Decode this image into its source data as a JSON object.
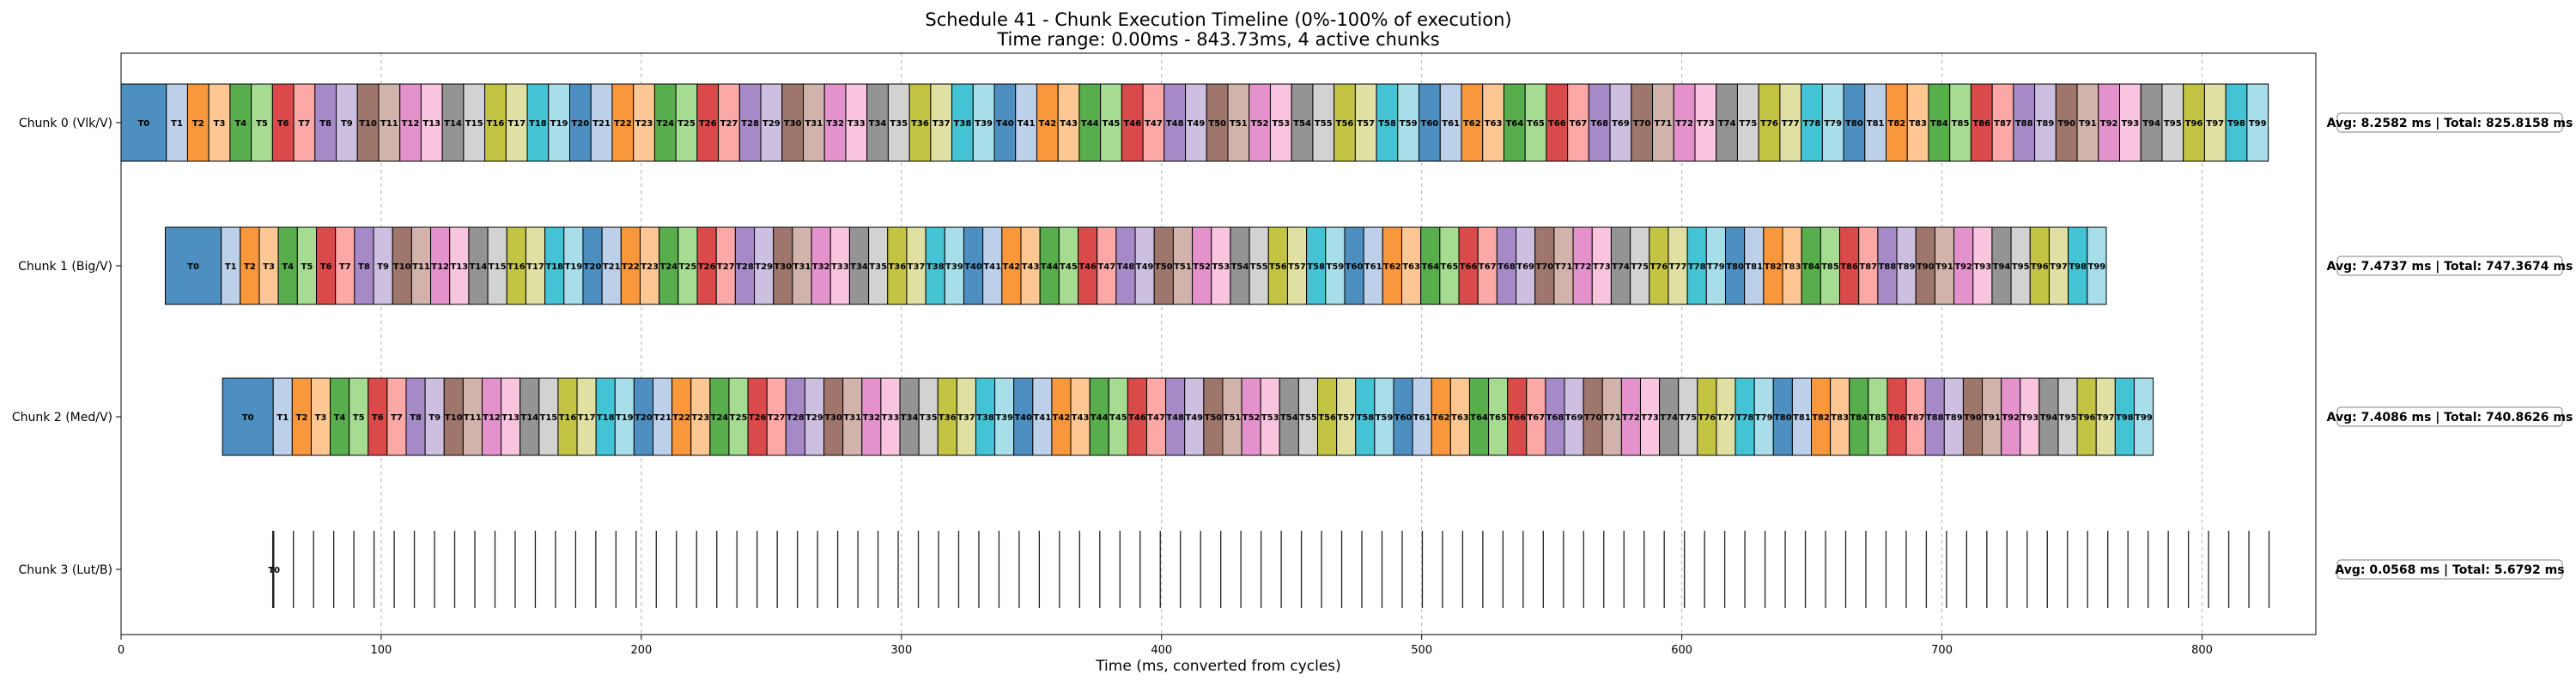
{
  "chart_data": {
    "type": "timeline",
    "title": "Schedule 41 - Chunk Execution Timeline (0%-100% of execution)",
    "subtitle": "Time range: 0.00ms - 843.73ms, 4 active chunks",
    "xlabel": "Time (ms, converted from cycles)",
    "xlim": [
      0,
      843.73
    ],
    "xticks": [
      0,
      100,
      200,
      300,
      400,
      500,
      600,
      700,
      800
    ],
    "grid": "x-dashed",
    "task_prefix": "T",
    "palette": [
      "#4c8fc0",
      "#bcd0ea",
      "#f8973c",
      "#fdc793",
      "#58ad4c",
      "#a5dc91",
      "#db4a4a",
      "#fba8a6",
      "#a68ac8",
      "#cdbfe0",
      "#9f766c",
      "#d2b3ab",
      "#e392cb",
      "#f8c4de",
      "#949494",
      "#d2d2d2",
      "#c4c444",
      "#e0e0a3",
      "#44c3d4",
      "#a8deea"
    ],
    "chunks": [
      {
        "label": "Chunk 0 (Vlk/V)",
        "start": 0,
        "count": 100,
        "first": 17.4,
        "rest": 8.162,
        "avg": 8.2582,
        "total": 825.8158,
        "summary": "Avg: 8.2582 ms | Total: 825.8158 ms"
      },
      {
        "label": "Chunk 1 (Big/V)",
        "start": 17.0,
        "count": 100,
        "first": 21.5,
        "rest": 7.32,
        "avg": 7.4737,
        "total": 747.3674,
        "summary": "Avg: 7.4737 ms | Total: 747.3674 ms"
      },
      {
        "label": "Chunk 2 (Med/V)",
        "start": 39.0,
        "count": 100,
        "first": 19.5,
        "rest": 7.3,
        "avg": 7.4086,
        "total": 740.8626,
        "summary": "Avg: 7.4086 ms | Total: 740.8626 ms"
      },
      {
        "label": "Chunk 3 (Lut/B)",
        "start": 58.5,
        "count": 100,
        "avg": 0.0568,
        "total": 5.6792,
        "spacing": 7.75,
        "summary": "Avg: 0.0568 ms | Total: 5.6792 ms",
        "first_label": "T0"
      }
    ]
  }
}
